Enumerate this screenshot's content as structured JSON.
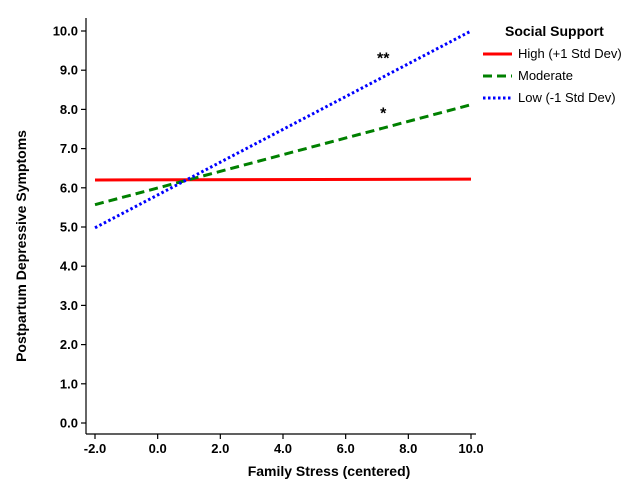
{
  "chart_data": {
    "type": "line",
    "xlabel": "Family Stress (centered)",
    "ylabel": "Postpartum Depressive Symptoms",
    "xlim": [
      -2.0,
      10.0
    ],
    "ylim": [
      0.0,
      10.0
    ],
    "x_ticks": [
      -2.0,
      0.0,
      2.0,
      4.0,
      6.0,
      8.0,
      10.0
    ],
    "y_ticks": [
      0.0,
      1.0,
      2.0,
      3.0,
      4.0,
      5.0,
      6.0,
      7.0,
      8.0,
      9.0,
      10.0
    ],
    "x_tick_labels": [
      "-2.0",
      "0.0",
      "2.0",
      "4.0",
      "6.0",
      "8.0",
      "10.0"
    ],
    "y_tick_labels": [
      "0.0",
      "1.0",
      "2.0",
      "3.0",
      "4.0",
      "5.0",
      "6.0",
      "7.0",
      "8.0",
      "9.0",
      "10.0"
    ],
    "grid": false,
    "legend": {
      "title": "Social Support",
      "placement": "right"
    },
    "series": [
      {
        "name": "High (+1 Std Dev)",
        "x": [
          -2.0,
          10.0
        ],
        "y": [
          6.2,
          6.22
        ],
        "color": "#ff0000",
        "style": "solid"
      },
      {
        "name": "Moderate",
        "x": [
          -2.0,
          10.0
        ],
        "y": [
          5.57,
          8.12
        ],
        "color": "#008000",
        "style": "dashed"
      },
      {
        "name": "Low (-1 Std Dev)",
        "x": [
          -2.0,
          10.0
        ],
        "y": [
          4.98,
          10.0
        ],
        "color": "#0000ff",
        "style": "dotted"
      }
    ],
    "annotations": [
      {
        "text": "**",
        "x": 7.2,
        "y": 9.3
      },
      {
        "text": "*",
        "x": 7.2,
        "y": 7.9
      }
    ]
  }
}
